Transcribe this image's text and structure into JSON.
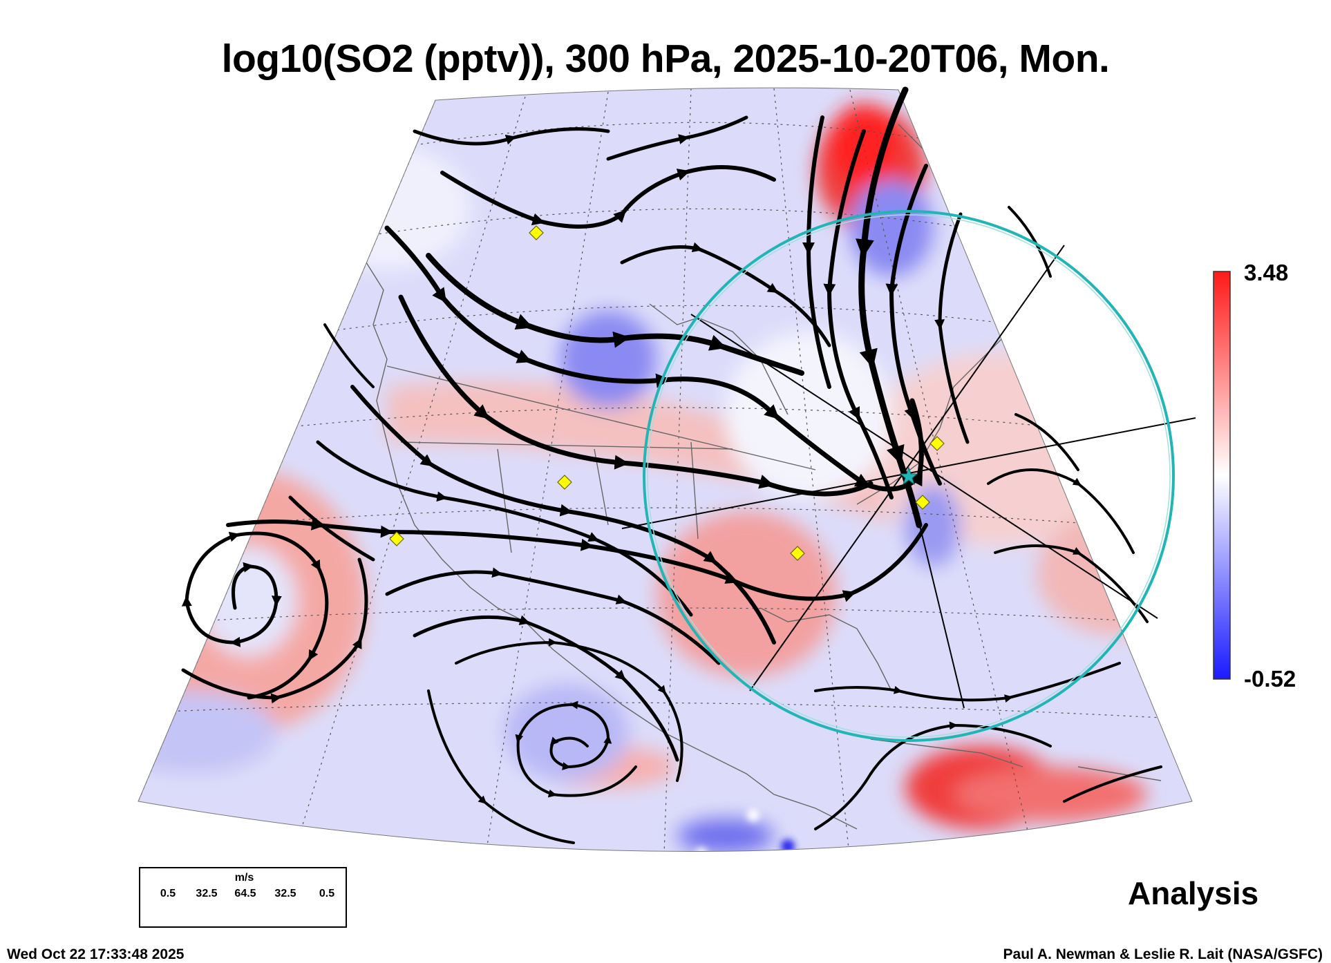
{
  "title": "log10(SO2 (pptv)), 300 hPa, 2025-10-20T06, Mon.",
  "colorbar": {
    "max_label": "3.48",
    "min_label": "-0.52",
    "colors": [
      "#1a1aff",
      "#8c8cff",
      "#ffffff",
      "#ff8c8c",
      "#ff1a1a"
    ]
  },
  "legend": {
    "unit": "m/s",
    "labels": [
      "0.5",
      "32.5",
      "64.5",
      "32.5",
      "0.5"
    ]
  },
  "stamp": "Analysis",
  "timestamp": "Wed Oct 22 17:33:48 2025",
  "credit": "Paul A. Newman & Leslie R. Lait (NASA/GSFC)",
  "colors": {
    "high": "#ff3030",
    "low": "#3030ff",
    "ring": "#22b5b5",
    "marker": "#ffff00"
  },
  "icons": [
    "station-marker-icon",
    "center-star-icon",
    "flow-arrow-icon"
  ]
}
